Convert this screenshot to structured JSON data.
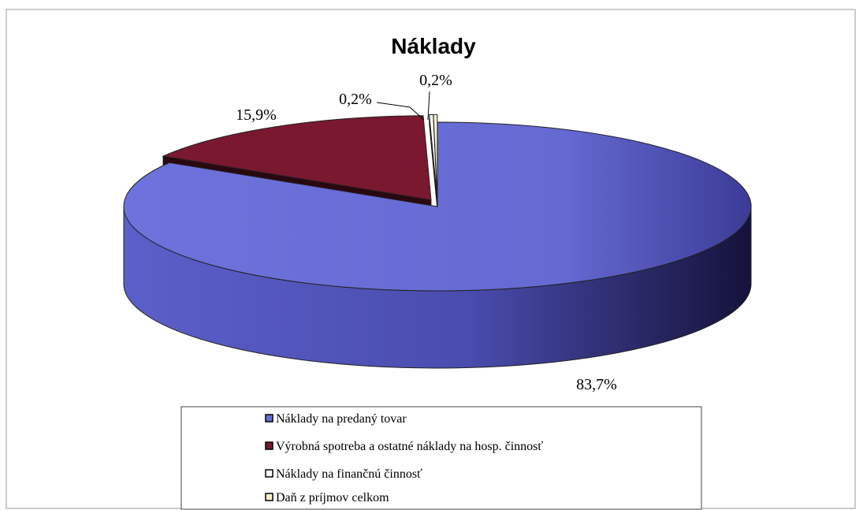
{
  "chart_data": {
    "type": "pie",
    "title": "Náklady",
    "categories": [
      "Náklady na predaný tovar",
      "Výrobná spotreba a ostatné náklady na hosp. činnosť",
      "Náklady na finančnú činnosť",
      "Daň z príjmov celkom"
    ],
    "values": [
      83.7,
      15.9,
      0.2,
      0.2
    ],
    "value_labels": [
      "83,7%",
      "15,9%",
      "0,2%",
      "0,2%"
    ],
    "colors": [
      "#6a6ed8",
      "#7a1830",
      "#ffffff",
      "#f6f1cc"
    ],
    "legend": "bottom"
  }
}
